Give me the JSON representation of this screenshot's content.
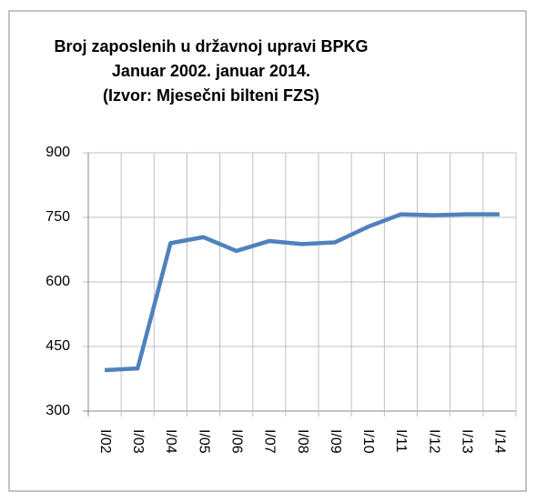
{
  "chart_data": {
    "type": "line",
    "title": [
      "Broj zaposlenih  u državnoj upravi  BPKG",
      "Januar 2002.  januar 2014.",
      "(Izvor: Mjesečni bilteni FZS)"
    ],
    "categories": [
      "I/02",
      "I/03",
      "I/04",
      "I/05",
      "I/06",
      "I/07",
      "I/08",
      "I/09",
      "I/10",
      "I/11",
      "I/12",
      "I/13",
      "I/14"
    ],
    "values": [
      395,
      399,
      690,
      704,
      672,
      695,
      688,
      692,
      728,
      757,
      755,
      757,
      757
    ],
    "color": "#4f81bd",
    "ylim": [
      300,
      900
    ],
    "yticks": [
      300,
      450,
      600,
      750,
      900
    ],
    "grid": true
  }
}
